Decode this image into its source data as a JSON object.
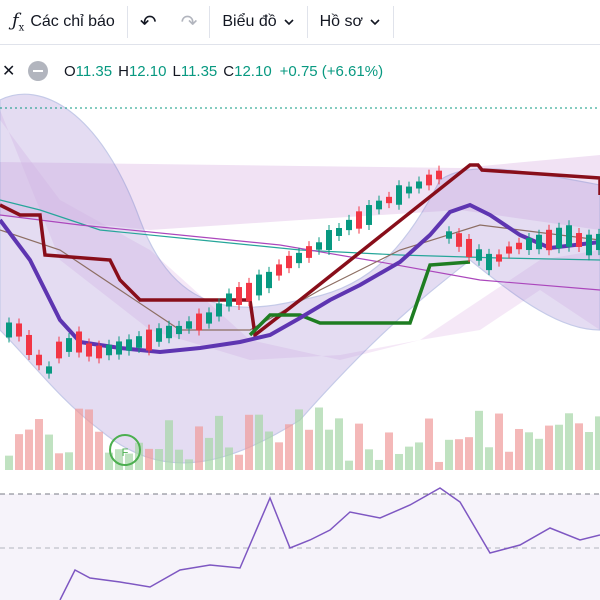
{
  "toolbar": {
    "indicators_label": "Các chỉ báo",
    "chart_label": "Biểu đồ",
    "profile_label": "Hồ sơ",
    "icons": [
      "fx-icon",
      "undo-icon",
      "redo-icon",
      "chevron-down-icon"
    ]
  },
  "legend": {
    "o_key": "O",
    "o_val": "11.35",
    "h_key": "H",
    "h_val": "12.10",
    "l_key": "L",
    "l_val": "11.35",
    "c_key": "C",
    "c_val": "12.10",
    "change": "+0.75 (+6.61%)"
  },
  "marker": {
    "text": "F"
  },
  "colors": {
    "up": "#089981",
    "down": "#f23645",
    "ma_purple": "#6a3fbf",
    "ma_dark_red": "#880e1a",
    "ma_green": "#1e7d22",
    "bb_fill": "#b39ddb",
    "cloud_pink": "#e1bee7",
    "rsi_line": "#7e57c2"
  }
}
